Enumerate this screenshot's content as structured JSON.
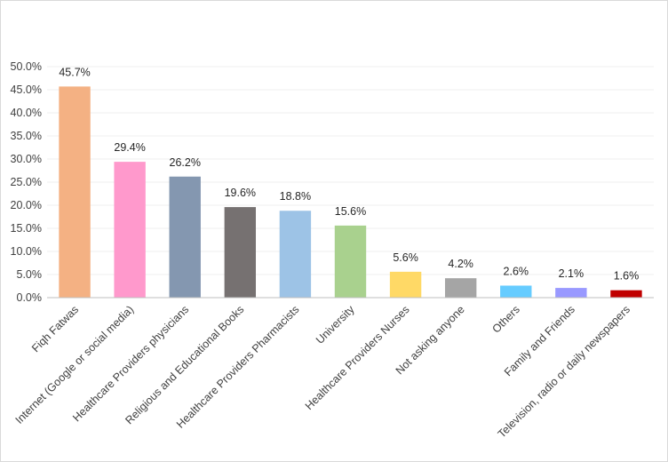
{
  "chart_data": {
    "type": "bar",
    "title": "",
    "xlabel": "",
    "ylabel": "",
    "ylim": [
      0,
      50
    ],
    "grid": true,
    "legend": "none",
    "y_ticks": [
      "0.0%",
      "5.0%",
      "10.0%",
      "15.0%",
      "20.0%",
      "25.0%",
      "30.0%",
      "35.0%",
      "40.0%",
      "45.0%",
      "50.0%"
    ],
    "categories": [
      "Fiqh Fatwas",
      "Internet (Google or social media)",
      "Healthcare Providers physicians",
      "Religious and Educational Books",
      "Healthcare Providers Pharmacists",
      "University",
      "Healthcare Providers Nurses",
      "Not asking anyone",
      "Others",
      "Family and Friends",
      "Television, radio or daily newspapers"
    ],
    "values": [
      45.7,
      29.4,
      26.2,
      19.6,
      18.8,
      15.6,
      5.6,
      4.2,
      2.6,
      2.1,
      1.6
    ],
    "data_labels": [
      "45.7%",
      "29.4%",
      "26.2%",
      "19.6%",
      "18.8%",
      "15.6%",
      "5.6%",
      "4.2%",
      "2.6%",
      "2.1%",
      "1.6%"
    ],
    "colors": [
      "#f4b183",
      "#ff99cc",
      "#8497b0",
      "#767171",
      "#9dc3e6",
      "#a9d18e",
      "#ffd966",
      "#a5a5a5",
      "#66ccff",
      "#9999ff",
      "#c00000"
    ]
  }
}
